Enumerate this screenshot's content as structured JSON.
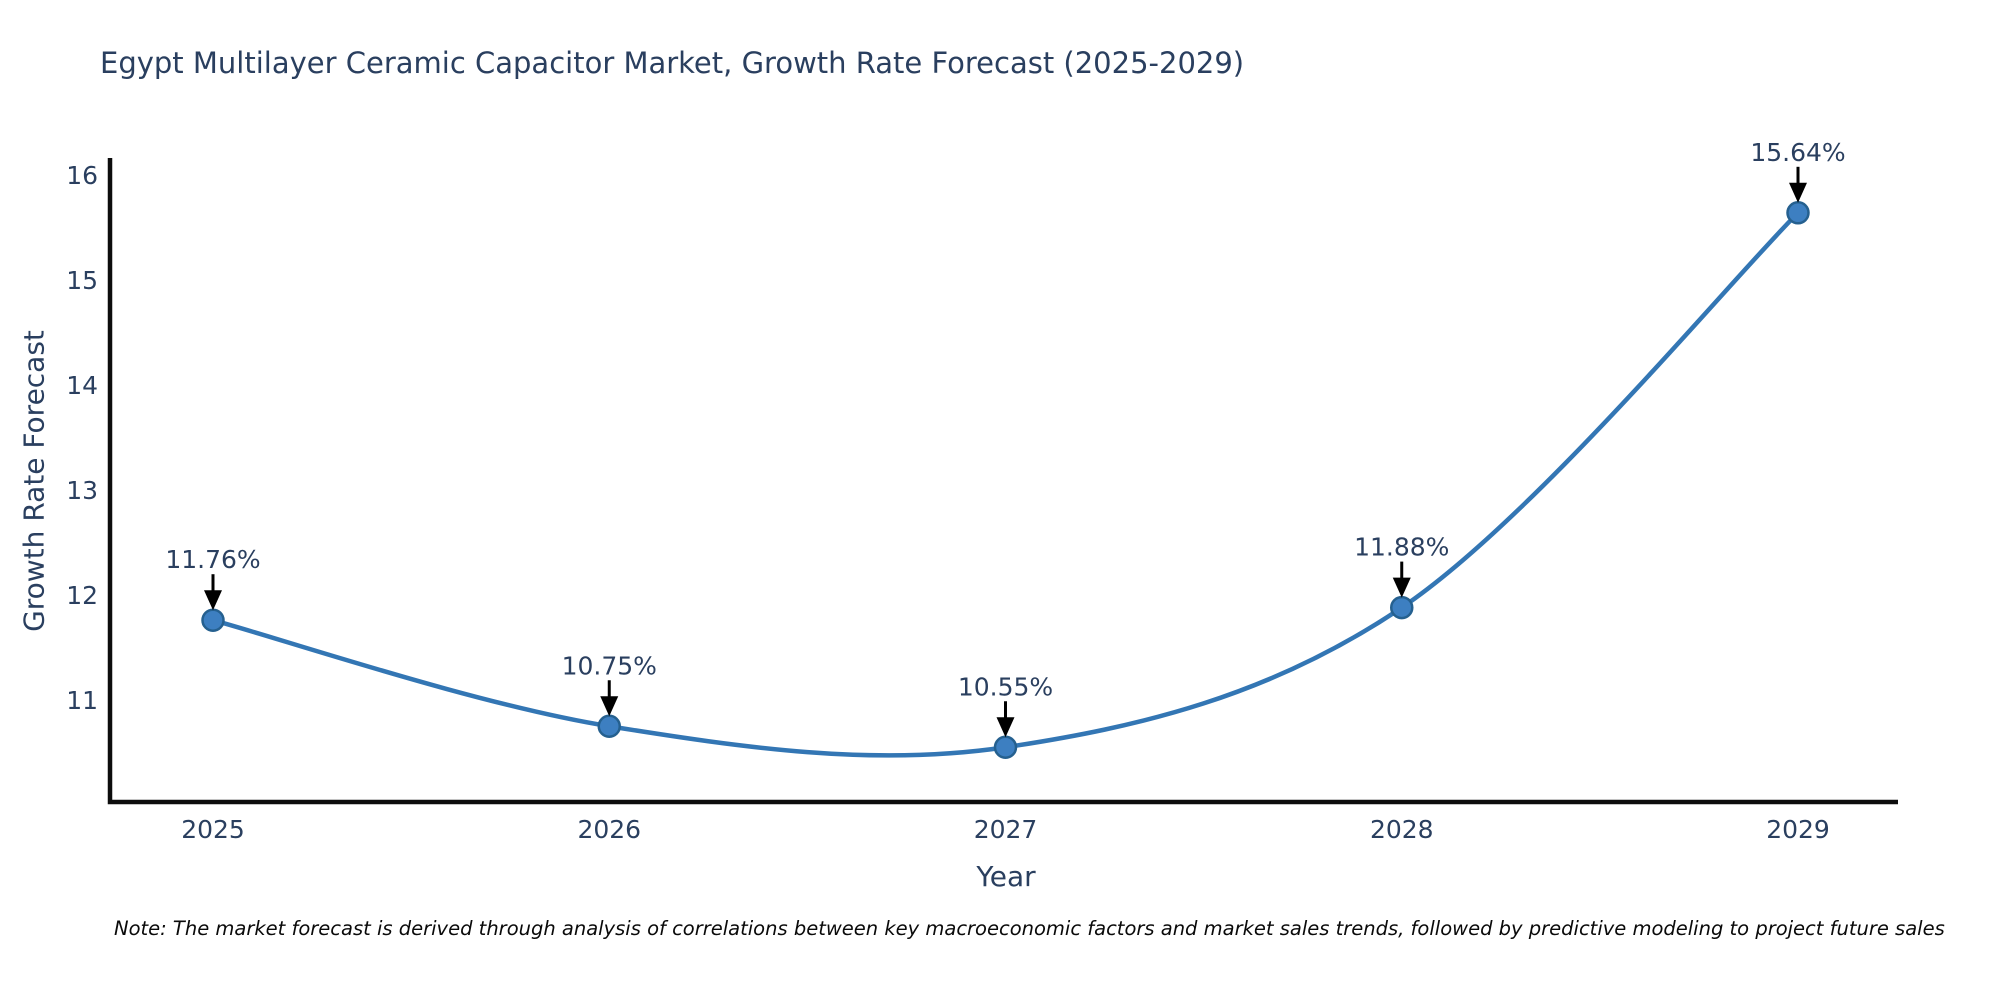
{
  "title": "Egypt Multilayer Ceramic Capacitor Market, Growth Rate Forecast (2025-2029)",
  "note": "Note: The market forecast is derived through analysis of correlations between key macroeconomic factors and market sales trends, followed by predictive modeling to project future sales",
  "chart_data": {
    "type": "line",
    "title": "Egypt Multilayer Ceramic Capacitor Market, Growth Rate Forecast (2025-2029)",
    "xlabel": "Year",
    "ylabel": "Growth Rate Forecast",
    "x": [
      2025,
      2026,
      2027,
      2028,
      2029
    ],
    "categories": [
      "2025",
      "2026",
      "2027",
      "2028",
      "2029"
    ],
    "series": [
      {
        "name": "Growth Rate Forecast",
        "values": [
          11.76,
          10.75,
          10.55,
          11.88,
          15.64
        ]
      }
    ],
    "point_labels": [
      "11.76%",
      "10.75%",
      "10.55%",
      "11.88%",
      "15.64%"
    ],
    "yticks": [
      11,
      12,
      13,
      14,
      15,
      16
    ],
    "ylim": [
      10.03,
      16.14
    ],
    "line_shape": "spline",
    "grid": false,
    "legend_position": "none",
    "colors": {
      "line": "#3376b4",
      "marker_fill": "#3d7fc1",
      "marker_edge": "#25608f",
      "axis_line": "#0d0d0d",
      "text": "#2a3f5f",
      "annotation_arrow": "#000000",
      "background": "#ffffff"
    }
  }
}
